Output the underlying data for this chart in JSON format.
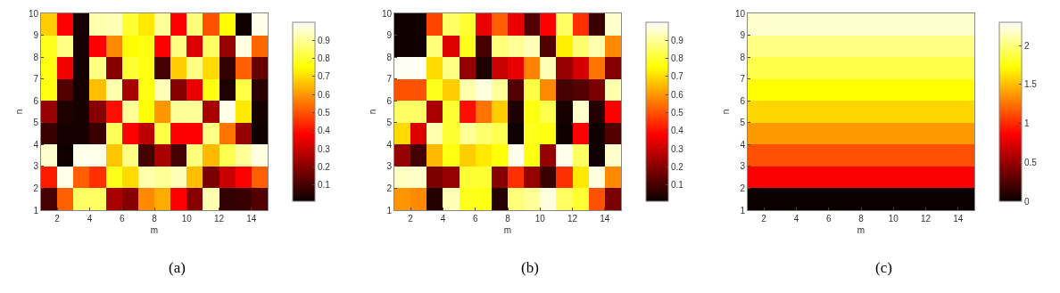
{
  "chart_data": [
    {
      "type": "heatmap",
      "xlabel": "m",
      "ylabel": "n",
      "annotations": [
        "(a)"
      ],
      "x": [
        1.5,
        2.5,
        3.5,
        4.5,
        5.5,
        6.5,
        7.5,
        8.5,
        9.5,
        10.5,
        11.5,
        12.5,
        13.5,
        14.5
      ],
      "xlim": [
        1,
        15
      ],
      "xticks": [
        2,
        4,
        6,
        8,
        10,
        12,
        14
      ],
      "ylim": [
        1,
        10
      ],
      "yticks": [
        1,
        2,
        3,
        4,
        5,
        6,
        7,
        8,
        9,
        10
      ],
      "clim": [
        0.01,
        1
      ],
      "cticks": [
        0.1,
        0.2,
        0.3,
        0.4,
        0.5,
        0.6,
        0.7,
        0.8,
        0.9
      ],
      "cells": [
        [
          0.68,
          0.38,
          0.03,
          0.92,
          0.93,
          0.8,
          0.72,
          0.9,
          0.38,
          0.87,
          0.5,
          0.75,
          0.02,
          0.98
        ],
        [
          0.78,
          0.88,
          0.03,
          0.38,
          0.58,
          0.75,
          0.77,
          0.38,
          0.88,
          0.33,
          0.85,
          0.22,
          0.97,
          0.53
        ],
        [
          0.77,
          0.36,
          0.03,
          0.88,
          0.2,
          0.8,
          0.77,
          0.1,
          0.68,
          0.88,
          0.7,
          0.07,
          0.52,
          0.15
        ],
        [
          0.77,
          0.12,
          0.03,
          0.66,
          0.92,
          0.25,
          0.77,
          0.93,
          0.2,
          0.35,
          0.77,
          0.04,
          0.82,
          0.06
        ],
        [
          0.22,
          0.04,
          0.03,
          0.2,
          0.4,
          0.9,
          0.76,
          0.6,
          0.9,
          0.9,
          0.25,
          0.98,
          0.72,
          0.03
        ],
        [
          0.08,
          0.03,
          0.03,
          0.08,
          0.84,
          0.38,
          0.28,
          0.82,
          0.38,
          0.38,
          0.88,
          0.55,
          0.22,
          0.02
        ],
        [
          0.95,
          0.02,
          0.98,
          0.98,
          0.67,
          0.88,
          0.1,
          0.25,
          0.1,
          0.87,
          0.65,
          0.83,
          0.9,
          0.97
        ],
        [
          0.42,
          0.98,
          0.52,
          0.45,
          0.78,
          0.7,
          0.92,
          0.9,
          0.93,
          0.66,
          0.18,
          0.3,
          0.38,
          0.52
        ],
        [
          0.1,
          0.52,
          0.85,
          0.85,
          0.25,
          0.2,
          0.58,
          0.63,
          0.38,
          0.2,
          0.92,
          0.07,
          0.08,
          0.12
        ]
      ]
    },
    {
      "type": "heatmap",
      "xlabel": "m",
      "ylabel": "n",
      "annotations": [
        "(b)"
      ],
      "x": [
        1.5,
        2.5,
        3.5,
        4.5,
        5.5,
        6.5,
        7.5,
        8.5,
        9.5,
        10.5,
        11.5,
        12.5,
        13.5,
        14.5
      ],
      "xlim": [
        1,
        15
      ],
      "xticks": [
        2,
        4,
        6,
        8,
        10,
        12,
        14
      ],
      "ylim": [
        1,
        10
      ],
      "yticks": [
        1,
        2,
        3,
        4,
        5,
        6,
        7,
        8,
        9,
        10
      ],
      "clim": [
        0.01,
        1
      ],
      "cticks": [
        0.1,
        0.2,
        0.3,
        0.4,
        0.5,
        0.6,
        0.7,
        0.8,
        0.9
      ],
      "cells": [
        [
          0.02,
          0.02,
          0.48,
          0.85,
          0.8,
          0.35,
          0.52,
          0.35,
          0.12,
          0.38,
          0.85,
          0.45,
          0.08,
          0.95
        ],
        [
          0.02,
          0.02,
          0.87,
          0.33,
          0.78,
          0.1,
          0.87,
          0.9,
          0.93,
          0.12,
          0.73,
          0.86,
          0.92,
          0.58
        ],
        [
          0.99,
          0.99,
          0.7,
          0.88,
          0.22,
          0.04,
          0.3,
          0.35,
          0.57,
          0.93,
          0.22,
          0.32,
          0.55,
          0.2
        ],
        [
          0.5,
          0.5,
          0.78,
          0.68,
          0.92,
          0.97,
          0.9,
          0.12,
          0.82,
          0.58,
          0.1,
          0.12,
          0.18,
          0.92
        ],
        [
          0.85,
          0.85,
          0.25,
          0.8,
          0.4,
          0.55,
          0.68,
          0.04,
          0.77,
          0.83,
          0.03,
          0.95,
          0.05,
          0.38
        ],
        [
          0.7,
          0.33,
          0.92,
          0.8,
          0.9,
          0.86,
          0.83,
          0.02,
          0.78,
          0.77,
          0.02,
          0.38,
          0.02,
          0.12
        ],
        [
          0.22,
          0.1,
          0.65,
          0.77,
          0.68,
          0.72,
          0.76,
          0.98,
          0.77,
          0.22,
          0.98,
          0.85,
          0.02,
          0.95
        ],
        [
          0.94,
          0.95,
          0.18,
          0.22,
          0.8,
          0.8,
          0.2,
          0.45,
          0.22,
          0.08,
          0.45,
          0.72,
          0.97,
          0.58
        ],
        [
          0.6,
          0.58,
          0.05,
          0.93,
          0.78,
          0.77,
          0.05,
          0.87,
          0.9,
          0.97,
          0.85,
          0.8,
          0.5,
          0.18
        ]
      ]
    },
    {
      "type": "heatmap",
      "xlabel": "m",
      "ylabel": "n",
      "annotations": [
        "(c)"
      ],
      "x": [
        1.5,
        2.5,
        3.5,
        4.5,
        5.5,
        6.5,
        7.5,
        8.5,
        9.5,
        10.5,
        11.5,
        12.5,
        13.5,
        14.5
      ],
      "xlim": [
        1,
        15
      ],
      "xticks": [
        2,
        4,
        6,
        8,
        10,
        12,
        14
      ],
      "ylim": [
        1,
        10
      ],
      "yticks": [
        1,
        2,
        3,
        4,
        5,
        6,
        7,
        8,
        9,
        10
      ],
      "clim": [
        0,
        2.3
      ],
      "cticks": [
        0,
        0.5,
        1,
        1.5,
        2
      ],
      "cells": [
        [
          2.19,
          2.19,
          2.19,
          2.19,
          2.19,
          2.19,
          2.19,
          2.19,
          2.19,
          2.19,
          2.19,
          2.19,
          2.19,
          2.19
        ],
        [
          2.02,
          2.02,
          2.02,
          2.02,
          2.02,
          2.02,
          2.02,
          2.02,
          2.02,
          2.02,
          2.02,
          2.02,
          2.02,
          2.02
        ],
        [
          1.89,
          1.89,
          1.89,
          1.89,
          1.89,
          1.89,
          1.89,
          1.89,
          1.89,
          1.89,
          1.89,
          1.89,
          1.89,
          1.89
        ],
        [
          1.73,
          1.73,
          1.73,
          1.73,
          1.73,
          1.73,
          1.73,
          1.73,
          1.73,
          1.73,
          1.73,
          1.73,
          1.73,
          1.73
        ],
        [
          1.59,
          1.59,
          1.59,
          1.59,
          1.59,
          1.59,
          1.59,
          1.59,
          1.59,
          1.59,
          1.59,
          1.59,
          1.59,
          1.59
        ],
        [
          1.38,
          1.38,
          1.38,
          1.38,
          1.38,
          1.38,
          1.38,
          1.38,
          1.38,
          1.38,
          1.38,
          1.38,
          1.38,
          1.38
        ],
        [
          1.13,
          1.13,
          1.13,
          1.13,
          1.13,
          1.13,
          1.13,
          1.13,
          1.13,
          1.13,
          1.13,
          1.13,
          1.13,
          1.13
        ],
        [
          0.85,
          0.85,
          0.85,
          0.85,
          0.85,
          0.85,
          0.85,
          0.85,
          0.85,
          0.85,
          0.85,
          0.85,
          0.85,
          0.85
        ],
        [
          0,
          0,
          0,
          0,
          0,
          0,
          0,
          0,
          0,
          0,
          0,
          0,
          0,
          0
        ]
      ]
    }
  ]
}
